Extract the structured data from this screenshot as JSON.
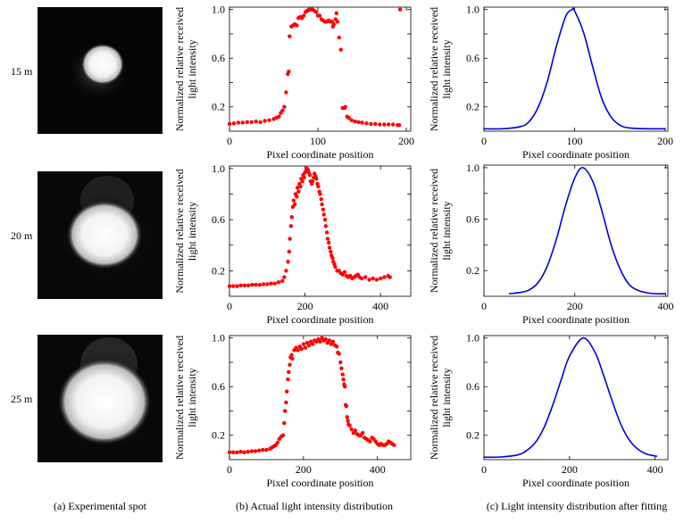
{
  "captions": {
    "a": "(a) Experimental spot",
    "b": "(b) Actual light intensity distribution",
    "c": "(c) Light intensity distribution after fitting"
  },
  "rows": [
    {
      "distance_label": "15 m"
    },
    {
      "distance_label": "20 m"
    },
    {
      "distance_label": "25 m"
    }
  ],
  "colors": {
    "measured": "#ff0000",
    "fitted": "#0000dd",
    "axes": "#000000"
  },
  "chart_data": [
    {
      "type": "scatter",
      "row": 1,
      "column": "b",
      "xlabel": "Pixel coordinate position",
      "ylabel": [
        "Normalized relative received",
        "light intensity"
      ],
      "xlim": [
        0,
        205
      ],
      "ylim": [
        0,
        1.02
      ],
      "xticks": [
        0,
        100,
        200
      ],
      "yticks": [
        0.2,
        0.6,
        1.0
      ],
      "grid": false,
      "x": [
        0,
        5,
        10,
        15,
        20,
        25,
        30,
        35,
        40,
        45,
        50,
        53,
        56,
        58,
        60,
        62,
        64,
        66,
        67,
        68,
        70,
        72,
        74,
        76,
        78,
        80,
        82,
        84,
        86,
        88,
        90,
        92,
        94,
        96,
        98,
        100,
        102,
        104,
        106,
        108,
        110,
        112,
        114,
        116,
        117,
        118,
        120,
        121,
        122,
        124,
        126,
        128,
        130,
        131,
        133,
        135,
        138,
        142,
        146,
        150,
        155,
        160,
        165,
        170,
        175,
        180,
        185,
        190,
        192,
        193
      ],
      "y": [
        0.06,
        0.065,
        0.07,
        0.07,
        0.075,
        0.075,
        0.08,
        0.075,
        0.085,
        0.09,
        0.1,
        0.11,
        0.12,
        0.15,
        0.17,
        0.2,
        0.32,
        0.47,
        0.49,
        0.78,
        0.86,
        0.87,
        0.88,
        0.87,
        0.93,
        0.94,
        0.93,
        0.95,
        0.98,
        0.99,
        1.0,
        1.0,
        1.0,
        0.99,
        0.98,
        0.95,
        0.95,
        0.92,
        0.91,
        0.9,
        0.9,
        0.91,
        0.9,
        0.9,
        0.86,
        0.88,
        0.92,
        0.97,
        0.9,
        0.77,
        0.67,
        0.19,
        0.19,
        0.2,
        0.12,
        0.11,
        0.09,
        0.08,
        0.075,
        0.07,
        0.065,
        0.06,
        0.06,
        0.055,
        0.055,
        0.055,
        0.055,
        0.05,
        0.05,
        1.0
      ]
    },
    {
      "type": "scatter",
      "row": 2,
      "column": "b",
      "xlabel": "Pixel coordinate position",
      "ylabel": [
        "Normalized relative received",
        "light intensity"
      ],
      "xlim": [
        0,
        480
      ],
      "ylim": [
        0,
        1.02
      ],
      "xticks": [
        0,
        200,
        400
      ],
      "yticks": [
        0.2,
        0.6,
        1.0
      ],
      "grid": false,
      "x": [
        0,
        10,
        20,
        30,
        40,
        50,
        60,
        70,
        80,
        90,
        100,
        110,
        120,
        130,
        140,
        145,
        150,
        155,
        158,
        160,
        163,
        165,
        168,
        170,
        173,
        175,
        178,
        180,
        183,
        185,
        188,
        190,
        193,
        195,
        198,
        200,
        203,
        205,
        208,
        210,
        213,
        215,
        218,
        220,
        223,
        225,
        228,
        230,
        233,
        235,
        238,
        240,
        243,
        245,
        248,
        250,
        253,
        255,
        258,
        260,
        263,
        265,
        268,
        270,
        273,
        275,
        278,
        280,
        285,
        290,
        295,
        300,
        305,
        310,
        315,
        320,
        325,
        330,
        335,
        340,
        345,
        350,
        360,
        370,
        380,
        390,
        400,
        410,
        420,
        425
      ],
      "y": [
        0.08,
        0.08,
        0.08,
        0.085,
        0.085,
        0.085,
        0.09,
        0.09,
        0.09,
        0.095,
        0.095,
        0.1,
        0.1,
        0.11,
        0.12,
        0.15,
        0.2,
        0.27,
        0.35,
        0.45,
        0.55,
        0.62,
        0.7,
        0.75,
        0.72,
        0.8,
        0.78,
        0.85,
        0.82,
        0.88,
        0.86,
        0.92,
        0.9,
        0.95,
        0.93,
        0.97,
        0.98,
        1.0,
        0.99,
        0.97,
        0.95,
        0.9,
        0.88,
        0.9,
        0.93,
        0.96,
        0.94,
        0.92,
        0.88,
        0.86,
        0.82,
        0.8,
        0.76,
        0.72,
        0.68,
        0.64,
        0.6,
        0.55,
        0.5,
        0.45,
        0.42,
        0.38,
        0.35,
        0.32,
        0.3,
        0.27,
        0.25,
        0.23,
        0.2,
        0.2,
        0.18,
        0.17,
        0.19,
        0.16,
        0.15,
        0.16,
        0.14,
        0.15,
        0.16,
        0.17,
        0.15,
        0.14,
        0.15,
        0.13,
        0.14,
        0.13,
        0.14,
        0.15,
        0.16,
        0.15
      ]
    },
    {
      "type": "scatter",
      "row": 3,
      "column": "b",
      "xlabel": "Pixel coordinate position",
      "ylabel": [
        "Normalized relative received",
        "light intensity"
      ],
      "xlim": [
        0,
        490
      ],
      "ylim": [
        0,
        1.02
      ],
      "xticks": [
        0,
        200,
        400
      ],
      "yticks": [
        0.2,
        0.6,
        1.0
      ],
      "grid": false,
      "x": [
        0,
        10,
        20,
        30,
        40,
        50,
        60,
        70,
        80,
        90,
        100,
        110,
        115,
        120,
        125,
        130,
        135,
        140,
        145,
        148,
        150,
        153,
        155,
        158,
        160,
        163,
        165,
        168,
        170,
        175,
        180,
        185,
        190,
        195,
        200,
        205,
        210,
        215,
        220,
        225,
        230,
        235,
        240,
        245,
        250,
        255,
        260,
        265,
        270,
        275,
        280,
        285,
        290,
        293,
        296,
        300,
        303,
        306,
        308,
        310,
        312,
        314,
        316,
        318,
        320,
        322,
        325,
        330,
        335,
        340,
        345,
        350,
        355,
        360,
        365,
        370,
        375,
        380,
        385,
        390,
        395,
        400,
        405,
        410,
        415,
        420,
        425,
        430,
        435,
        440,
        445
      ],
      "y": [
        0.06,
        0.06,
        0.06,
        0.065,
        0.06,
        0.065,
        0.07,
        0.07,
        0.075,
        0.08,
        0.08,
        0.09,
        0.1,
        0.11,
        0.12,
        0.14,
        0.17,
        0.19,
        0.2,
        0.3,
        0.4,
        0.47,
        0.56,
        0.66,
        0.72,
        0.78,
        0.84,
        0.86,
        0.83,
        0.9,
        0.92,
        0.9,
        0.93,
        0.91,
        0.95,
        0.92,
        0.96,
        0.94,
        0.97,
        0.95,
        0.98,
        0.97,
        0.99,
        0.97,
        1.0,
        0.98,
        0.99,
        0.96,
        0.98,
        0.95,
        0.97,
        0.94,
        0.93,
        0.88,
        0.87,
        0.8,
        0.75,
        0.7,
        0.66,
        0.62,
        0.6,
        0.45,
        0.44,
        0.35,
        0.32,
        0.29,
        0.28,
        0.25,
        0.22,
        0.24,
        0.21,
        0.2,
        0.2,
        0.22,
        0.18,
        0.17,
        0.16,
        0.15,
        0.18,
        0.17,
        0.15,
        0.13,
        0.12,
        0.13,
        0.12,
        0.12,
        0.13,
        0.15,
        0.14,
        0.13,
        0.12
      ]
    },
    {
      "type": "line",
      "row": 1,
      "column": "c",
      "xlabel": "Pixel coordinate position",
      "ylabel": [
        "Normalized relative received",
        "light intensity"
      ],
      "xlim": [
        0,
        203
      ],
      "ylim": [
        0,
        1.02
      ],
      "xticks": [
        0,
        100,
        200
      ],
      "yticks": [
        0.2,
        0.6,
        1.0
      ],
      "grid": false,
      "x": [
        0,
        20,
        40,
        50,
        60,
        70,
        80,
        90,
        97,
        100,
        110,
        120,
        130,
        140,
        150,
        160,
        180,
        200
      ],
      "y": [
        0.02,
        0.02,
        0.037,
        0.08,
        0.2,
        0.41,
        0.7,
        0.94,
        1.0,
        0.99,
        0.81,
        0.53,
        0.27,
        0.12,
        0.05,
        0.027,
        0.02,
        0.02
      ]
    },
    {
      "type": "line",
      "row": 2,
      "column": "c",
      "xlabel": "Pixel coordinate position",
      "ylabel": [
        "Normalized relative received",
        "light intensity"
      ],
      "xlim": [
        0,
        405
      ],
      "ylim": [
        0,
        1.02
      ],
      "xticks": [
        0,
        200,
        400
      ],
      "yticks": [
        0.2,
        0.6,
        1.0
      ],
      "grid": false,
      "x": [
        55,
        80,
        100,
        120,
        140,
        160,
        180,
        200,
        218,
        240,
        260,
        280,
        300,
        320,
        340,
        360,
        380,
        400
      ],
      "y": [
        0.02,
        0.03,
        0.05,
        0.11,
        0.24,
        0.45,
        0.71,
        0.92,
        1.0,
        0.89,
        0.66,
        0.4,
        0.21,
        0.09,
        0.045,
        0.027,
        0.02,
        0.02
      ]
    },
    {
      "type": "line",
      "row": 3,
      "column": "c",
      "xlabel": "Pixel coordinate position",
      "ylabel": [
        "Normalized relative received",
        "light intensity"
      ],
      "xlim": [
        0,
        430
      ],
      "ylim": [
        0,
        1.02
      ],
      "xticks": [
        0,
        200,
        400
      ],
      "yticks": [
        0.2,
        0.6,
        1.0
      ],
      "grid": false,
      "x": [
        0,
        40,
        80,
        100,
        120,
        140,
        160,
        180,
        200,
        232,
        260,
        280,
        300,
        320,
        340,
        360,
        380,
        405
      ],
      "y": [
        0.02,
        0.022,
        0.04,
        0.075,
        0.14,
        0.26,
        0.44,
        0.65,
        0.85,
        1.0,
        0.88,
        0.69,
        0.48,
        0.29,
        0.16,
        0.085,
        0.046,
        0.027
      ]
    }
  ]
}
